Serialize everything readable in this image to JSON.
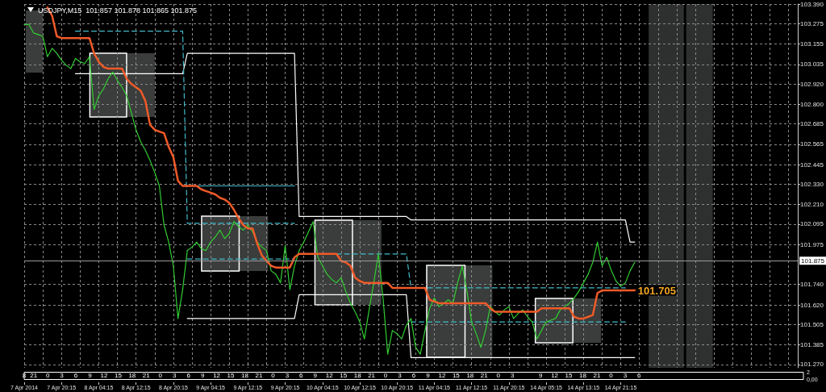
{
  "chart_data": [
    {
      "type": "line",
      "title": "USDJPY,M15  101.857 101.878 101.865 101.875",
      "categories": [
        "7 Apr 2014",
        null,
        null,
        null,
        null,
        null,
        null,
        null,
        "7 Apr 20:15",
        null,
        null,
        null,
        null,
        null,
        null,
        null,
        "8 Apr 04:15",
        null,
        null,
        null,
        null,
        null,
        null,
        null,
        "8 Apr 12:15",
        null,
        null,
        null,
        null,
        null,
        null,
        null,
        "8 Apr 20:15",
        null,
        null,
        null,
        null,
        null,
        null,
        null,
        "9 Apr 04:15",
        null,
        null,
        null,
        null,
        null,
        null,
        null,
        "9 Apr 12:15",
        null,
        null,
        null,
        null,
        null,
        null,
        null,
        "9 Apr 20:15",
        null,
        null,
        null,
        null,
        null,
        null,
        null,
        "10 Apr 04:15",
        null,
        null,
        null,
        null,
        null,
        null,
        null,
        "10 Apr 12:15",
        null,
        null,
        null,
        null,
        null,
        null,
        null,
        "10 Apr 20:15",
        null,
        null,
        null,
        null,
        null,
        null,
        null,
        "11 Apr 04:15",
        null,
        null,
        null,
        null,
        null,
        null,
        null,
        "11 Apr 12:15",
        null,
        null,
        null,
        null,
        null,
        null,
        null,
        "11 Apr 20:15",
        null,
        null,
        null,
        null,
        null,
        null,
        null,
        "14 Apr 05:15",
        null,
        null,
        null,
        null,
        null,
        null,
        null,
        "14 Apr 13:15",
        null,
        null,
        null,
        null,
        null,
        null,
        null,
        "14 Apr 21:15",
        null,
        null,
        null,
        null,
        null,
        null,
        null,
        null,
        null,
        null,
        null,
        null,
        null,
        null,
        null,
        null,
        null,
        null,
        null,
        null,
        null,
        null,
        null,
        null,
        null,
        null,
        null,
        null,
        null,
        null,
        null,
        null,
        null,
        null,
        null,
        null,
        null,
        null
      ],
      "ylim": [
        101.25,
        103.39
      ],
      "yticks": [
        {
          "value": 101.27,
          "label": "101.270"
        },
        {
          "value": 101.385,
          "label": "101.385"
        },
        {
          "value": 101.505,
          "label": "101.505"
        },
        {
          "value": 101.62,
          "label": "101.620"
        },
        {
          "value": 101.74,
          "label": "101.740"
        },
        {
          "value": 101.975,
          "label": "101.975"
        },
        {
          "value": 102.095,
          "label": "102.095"
        },
        {
          "value": 102.21,
          "label": "102.210"
        },
        {
          "value": 102.33,
          "label": "102.330"
        },
        {
          "value": 102.445,
          "label": "102.445"
        },
        {
          "value": 102.565,
          "label": "102.565"
        },
        {
          "value": 102.685,
          "label": "102.685"
        },
        {
          "value": 102.8,
          "label": "102.800"
        },
        {
          "value": 102.92,
          "label": "102.920"
        },
        {
          "value": 103.035,
          "label": "103.035"
        },
        {
          "value": 103.155,
          "label": "103.155"
        },
        {
          "value": 103.275,
          "label": "103.275"
        },
        {
          "value": 103.39,
          "label": "103.390"
        }
      ],
      "grid": true,
      "line_style": "solid",
      "series": [
        {
          "type": "line",
          "color": "#ffffff",
          "values": [
            null,
            null,
            null,
            null,
            null,
            null,
            null,
            null,
            null,
            null,
            null,
            102.98,
            102.98,
            102.98,
            102.98,
            102.98,
            102.98,
            102.98,
            102.98,
            102.98,
            102.98,
            102.98,
            102.98,
            102.98,
            102.98,
            102.98,
            102.98,
            102.98,
            102.98,
            102.98,
            102.98,
            102.98,
            102.98,
            102.98,
            102.98,
            103.1,
            103.1,
            103.1,
            103.1,
            103.1,
            103.1,
            103.1,
            103.1,
            103.1,
            103.1,
            103.1,
            103.1,
            103.1,
            103.1,
            103.1,
            103.1,
            103.1,
            103.1,
            103.1,
            103.1,
            103.1,
            103.1,
            103.1,
            103.1,
            102.14,
            102.14,
            102.14,
            102.14,
            102.14,
            102.14,
            102.14,
            102.14,
            102.14,
            102.14,
            102.14,
            102.14,
            102.14,
            102.14,
            102.14,
            102.14,
            102.14,
            102.14,
            102.14,
            102.14,
            102.14,
            102.14,
            102.14,
            102.14,
            102.12,
            102.12,
            102.12,
            102.12,
            102.12,
            102.12,
            102.12,
            102.12,
            102.12,
            102.12,
            102.12,
            102.12,
            102.12,
            102.12,
            102.12,
            102.12,
            102.12,
            102.12,
            102.12,
            102.12,
            102.12,
            102.12,
            102.12,
            102.12,
            102.12,
            102.12,
            102.12,
            102.12,
            102.12,
            102.12,
            102.12,
            102.12,
            102.12,
            102.12,
            102.12,
            102.12,
            102.12,
            102.12,
            102.12,
            102.12,
            102.12,
            102.12,
            102.12,
            102.12,
            102.12,
            102.12,
            102.12,
            101.99,
            101.99,
            null,
            null,
            null,
            null,
            null,
            null,
            null,
            null,
            null,
            null,
            null,
            null,
            null,
            null,
            null,
            null,
            null,
            null,
            null,
            null,
            null,
            null,
            null,
            null,
            null,
            null,
            null,
            null,
            null,
            null,
            null,
            null,
            null,
            null,
            null
          ]
        },
        {
          "type": "line",
          "color": "#ffffff",
          "values": [
            null,
            null,
            null,
            null,
            null,
            null,
            null,
            null,
            null,
            null,
            null,
            null,
            null,
            null,
            null,
            null,
            null,
            null,
            null,
            null,
            null,
            null,
            null,
            null,
            null,
            null,
            null,
            null,
            null,
            null,
            null,
            null,
            null,
            null,
            null,
            101.54,
            101.54,
            101.54,
            101.54,
            101.54,
            101.54,
            101.54,
            101.54,
            101.54,
            101.54,
            101.54,
            101.54,
            101.54,
            101.54,
            101.54,
            101.54,
            101.54,
            101.54,
            101.54,
            101.54,
            101.54,
            101.54,
            101.54,
            101.54,
            101.68,
            101.68,
            101.68,
            101.68,
            101.68,
            101.68,
            101.68,
            101.68,
            101.68,
            101.68,
            101.68,
            101.68,
            101.68,
            101.68,
            101.68,
            101.68,
            101.68,
            101.68,
            101.68,
            101.68,
            101.68,
            101.68,
            101.68,
            101.68,
            101.31,
            101.31,
            101.31,
            101.31,
            101.31,
            101.31,
            101.31,
            101.31,
            101.31,
            101.31,
            101.31,
            101.31,
            101.31,
            101.31,
            101.31,
            101.31,
            101.31,
            101.31,
            101.31,
            101.31,
            101.31,
            101.31,
            101.31,
            101.31,
            101.31,
            101.31,
            101.31,
            101.31,
            101.31,
            101.31,
            101.31,
            101.31,
            101.31,
            101.31,
            101.31,
            101.31,
            101.31,
            101.31,
            101.31,
            101.31,
            101.31,
            101.31,
            101.31,
            101.31,
            101.31,
            101.31,
            101.31,
            101.31,
            101.31,
            null,
            null,
            null,
            null,
            null,
            null,
            null,
            null,
            null,
            null,
            null,
            null,
            null,
            null,
            null,
            null,
            null,
            null,
            null,
            null,
            null,
            null,
            null,
            null,
            null,
            null,
            null,
            null,
            null,
            null,
            null,
            null,
            null,
            null,
            null
          ]
        },
        {
          "type": "line",
          "color": "#40bccc",
          "line_style": "solid",
          "values": [
            null,
            null,
            null,
            null,
            null,
            null,
            null,
            null,
            null,
            null,
            null,
            null,
            null,
            null,
            null,
            null,
            null,
            null,
            null,
            null,
            null,
            null,
            null,
            null,
            null,
            null,
            null,
            null,
            null,
            null,
            null,
            null,
            null,
            null,
            null,
            102.32,
            102.32,
            102.32,
            102.32,
            102.32,
            102.32,
            102.32,
            102.32,
            102.32,
            102.32,
            102.32,
            102.32,
            102.32,
            102.32,
            102.32,
            102.32,
            102.32,
            102.32,
            102.32,
            102.32,
            102.32,
            102.32,
            102.32,
            102.32,
            null,
            null,
            null,
            null,
            null,
            null,
            null,
            null,
            null,
            null,
            null,
            null,
            null,
            null,
            null,
            null,
            null,
            null,
            null,
            null,
            null,
            null,
            null,
            null,
            null,
            null,
            null,
            null,
            null,
            null,
            null,
            null,
            null,
            null,
            null,
            null,
            null,
            null,
            null,
            null,
            null,
            null,
            null,
            null,
            null,
            null,
            null,
            null,
            null,
            null,
            null,
            null,
            null,
            null,
            null,
            null,
            null,
            null,
            null,
            null,
            null,
            null,
            null,
            null,
            null,
            null,
            null,
            null,
            null,
            null,
            null,
            null,
            null,
            null,
            null,
            null,
            null,
            null,
            null,
            null,
            null,
            null,
            null,
            null,
            null,
            null,
            null,
            null,
            null,
            null,
            null,
            null,
            null,
            null,
            null,
            null,
            null,
            null,
            null,
            null,
            null,
            null,
            null,
            null,
            null,
            null,
            null,
            null
          ]
        },
        {
          "type": "line",
          "color": "#40bccc",
          "line_style": "dashed",
          "values": [
            null,
            null,
            null,
            null,
            null,
            null,
            null,
            null,
            null,
            null,
            null,
            103.23,
            103.23,
            103.23,
            103.23,
            103.23,
            103.23,
            103.23,
            103.23,
            103.23,
            103.23,
            103.23,
            103.23,
            103.23,
            103.23,
            103.23,
            103.23,
            103.23,
            103.23,
            103.23,
            103.23,
            103.23,
            103.23,
            103.23,
            103.23,
            102.1,
            102.1,
            102.1,
            102.1,
            102.1,
            102.1,
            102.1,
            102.1,
            102.1,
            102.1,
            102.1,
            102.1,
            102.1,
            102.1,
            102.1,
            102.1,
            102.1,
            102.1,
            102.1,
            102.1,
            102.1,
            102.1,
            102.1,
            102.1,
            null,
            null,
            null,
            null,
            null,
            null,
            null,
            null,
            101.92,
            101.92,
            101.92,
            101.92,
            101.92,
            101.92,
            101.92,
            101.92,
            101.92,
            101.92,
            101.92,
            101.92,
            101.92,
            101.92,
            101.92,
            101.92,
            101.72,
            101.72,
            101.72,
            101.72,
            101.72,
            101.72,
            101.72,
            101.72,
            101.72,
            101.72,
            101.72,
            101.72,
            101.72,
            101.72,
            101.72,
            101.72,
            101.72,
            101.72,
            101.72,
            101.72,
            101.72,
            101.72,
            101.72,
            101.72,
            101.72,
            101.72,
            101.72,
            101.72,
            101.72,
            101.72,
            101.72,
            101.72,
            101.72,
            101.72,
            101.72,
            101.72,
            101.72,
            101.72,
            101.72,
            101.72,
            101.72,
            101.72,
            101.72,
            101.72,
            101.72,
            101.72,
            101.72,
            null,
            null,
            null,
            null,
            null,
            null,
            null,
            null,
            null,
            null,
            null,
            null,
            null,
            null,
            null,
            null,
            null,
            null,
            null,
            null,
            null,
            null,
            null,
            null,
            null,
            null,
            null,
            null,
            null,
            null,
            null,
            null,
            null,
            null,
            null,
            null,
            null
          ]
        },
        {
          "type": "line",
          "color": "#40bccc",
          "line_style": "dashed",
          "values": [
            null,
            null,
            null,
            null,
            null,
            null,
            null,
            null,
            null,
            null,
            null,
            null,
            null,
            null,
            null,
            null,
            null,
            null,
            null,
            null,
            null,
            null,
            null,
            null,
            null,
            null,
            null,
            null,
            null,
            null,
            null,
            null,
            null,
            null,
            null,
            101.89,
            101.89,
            101.89,
            101.89,
            101.89,
            101.89,
            101.89,
            101.89,
            101.89,
            101.89,
            101.89,
            101.89,
            101.89,
            101.89,
            101.89,
            101.89,
            101.89,
            101.89,
            101.89,
            101.89,
            101.89,
            101.89,
            101.89,
            101.89,
            null,
            null,
            null,
            null,
            null,
            null,
            null,
            null,
            null,
            null,
            null,
            null,
            null,
            null,
            null,
            null,
            null,
            null,
            null,
            null,
            null,
            null,
            null,
            null,
            101.52,
            101.52,
            101.52,
            101.52,
            101.52,
            101.52,
            101.52,
            101.52,
            101.52,
            101.52,
            101.52,
            101.52,
            101.52,
            101.52,
            101.52,
            101.52,
            101.52,
            101.52,
            101.52,
            101.52,
            101.52,
            101.52,
            101.52,
            101.52,
            101.52,
            101.52,
            101.52,
            101.52,
            101.52,
            101.52,
            101.52,
            101.52,
            101.52,
            101.52,
            101.52,
            101.52,
            101.52,
            101.52,
            101.52,
            101.52,
            101.52,
            101.52,
            101.52,
            101.52,
            101.52,
            101.52,
            101.52,
            null,
            null,
            null,
            null,
            null,
            null,
            null,
            null,
            null,
            null,
            null,
            null,
            null,
            null,
            null,
            null,
            null,
            null,
            null,
            null,
            null,
            null,
            null,
            null,
            null,
            null,
            null,
            null,
            null,
            null,
            null,
            null,
            null,
            null,
            null,
            null,
            null
          ]
        },
        {
          "type": "line",
          "color": "#32cd32",
          "values": [
            103.27,
            103.27,
            103.22,
            103.21,
            103.2,
            103.08,
            103.13,
            103.1,
            103.06,
            103.03,
            103.01,
            103.07,
            103.05,
            103.04,
            103.08,
            102.77,
            102.85,
            102.89,
            102.95,
            102.99,
            102.94,
            102.9,
            102.85,
            102.75,
            102.65,
            102.58,
            102.53,
            102.47,
            102.4,
            102.32,
            102.09,
            101.99,
            101.85,
            101.54,
            101.71,
            101.94,
            101.96,
            101.99,
            101.95,
            101.94,
            101.99,
            102.02,
            102.06,
            102.01,
            102.04,
            102.11,
            102.08,
            102.06,
            102.09,
            102.05,
            101.99,
            101.96,
            101.94,
            101.82,
            101.8,
            101.75,
            101.97,
            101.71,
            101.85,
            101.94,
            101.99,
            102.05,
            102.11,
            101.9,
            101.85,
            101.8,
            101.77,
            101.75,
            101.78,
            101.7,
            101.63,
            101.58,
            101.52,
            101.42,
            101.59,
            101.75,
            101.92,
            101.66,
            101.33,
            101.47,
            101.45,
            101.42,
            101.5,
            101.54,
            101.37,
            101.33,
            101.47,
            101.6,
            101.66,
            101.61,
            101.63,
            101.65,
            101.63,
            101.75,
            101.85,
            101.7,
            101.52,
            101.45,
            101.37,
            101.47,
            101.61,
            101.58,
            101.56,
            101.59,
            101.61,
            101.54,
            101.57,
            101.59,
            101.55,
            101.52,
            101.42,
            101.47,
            101.52,
            101.53,
            101.54,
            101.59,
            101.61,
            101.63,
            101.66,
            101.7,
            101.75,
            101.8,
            101.87,
            101.99,
            101.85,
            101.9,
            101.82,
            101.76,
            101.73,
            101.75,
            101.82,
            101.87,
            null,
            null,
            null,
            null,
            null,
            null,
            null,
            null,
            null,
            null,
            null,
            null,
            null,
            null,
            null,
            null,
            null,
            null,
            null,
            null,
            null,
            null,
            null,
            null,
            null,
            null,
            null,
            null,
            null,
            null,
            null,
            null,
            null,
            null,
            null
          ]
        },
        {
          "type": "line",
          "color": "#f05a28",
          "values": [
            null,
            null,
            null,
            null,
            null,
            103.37,
            103.32,
            103.2,
            103.19,
            103.19,
            103.19,
            103.19,
            103.19,
            103.19,
            103.19,
            103.1,
            103.05,
            103.02,
            103.01,
            103.01,
            103.01,
            103.01,
            102.95,
            102.92,
            102.9,
            102.88,
            102.82,
            102.68,
            102.65,
            102.64,
            102.63,
            102.55,
            102.49,
            102.35,
            102.32,
            102.32,
            102.32,
            102.32,
            102.3,
            102.29,
            102.28,
            102.27,
            102.25,
            102.24,
            102.22,
            102.18,
            102.13,
            102.09,
            102.07,
            102.07,
            101.98,
            101.91,
            101.88,
            101.85,
            101.84,
            101.84,
            101.84,
            101.84,
            101.9,
            101.92,
            101.92,
            101.92,
            101.92,
            101.92,
            101.92,
            101.92,
            101.92,
            101.92,
            101.88,
            101.87,
            101.85,
            101.78,
            101.76,
            101.75,
            101.75,
            101.75,
            101.75,
            101.75,
            101.75,
            101.72,
            101.72,
            101.72,
            101.72,
            101.72,
            101.72,
            101.72,
            101.72,
            101.65,
            101.64,
            101.63,
            101.63,
            101.63,
            101.63,
            101.63,
            101.63,
            101.63,
            101.63,
            101.63,
            101.63,
            101.63,
            101.6,
            101.58,
            101.58,
            101.58,
            101.58,
            101.58,
            101.58,
            101.58,
            101.58,
            101.58,
            101.58,
            101.6,
            101.6,
            101.6,
            101.6,
            101.6,
            101.6,
            101.6,
            101.55,
            101.54,
            101.54,
            101.55,
            101.56,
            101.69,
            101.705,
            101.705,
            101.705,
            101.705,
            101.705,
            101.705,
            101.705,
            101.705,
            null,
            null,
            null,
            null,
            null,
            null,
            null,
            null,
            null,
            null,
            null,
            null,
            null,
            null,
            null,
            null,
            null,
            null,
            null,
            null,
            null,
            null,
            null,
            null,
            null,
            null,
            null,
            null,
            null,
            null,
            null,
            null,
            null,
            null,
            null
          ]
        }
      ],
      "ref_lines": [
        {
          "axis": "y",
          "value": 101.875,
          "label": "101.875",
          "color": "#9a9a9a"
        }
      ],
      "annotations": [
        "101.705"
      ]
    },
    {
      "type": "line",
      "values": [
        null,
        null,
        null,
        null,
        null,
        null,
        null,
        null,
        null,
        null,
        null,
        null,
        null,
        null,
        null,
        null,
        null,
        null,
        null,
        null,
        null,
        null,
        null,
        null,
        null,
        null,
        null,
        null,
        null,
        null,
        null,
        null,
        null,
        null,
        null,
        null,
        null,
        null,
        null,
        null,
        null,
        null,
        null,
        null,
        null,
        null,
        null,
        null,
        null,
        null,
        null,
        null,
        null,
        null,
        null,
        null,
        null,
        null,
        null,
        null,
        null,
        null,
        null,
        null,
        null,
        null,
        null,
        null,
        null,
        null,
        null,
        null,
        null,
        null,
        null,
        null,
        null,
        null,
        null,
        null,
        null,
        null,
        null,
        null,
        null,
        null,
        null,
        null,
        null,
        null,
        null,
        null,
        null,
        null,
        null,
        null,
        null,
        null,
        null,
        null,
        null,
        null,
        null,
        null,
        null,
        null,
        null,
        null,
        null,
        null,
        null,
        null,
        null,
        null,
        null,
        null,
        null,
        null,
        null,
        null,
        null,
        null,
        null,
        null,
        null,
        null,
        null,
        null,
        null,
        null,
        null,
        null,
        null,
        null,
        null,
        null,
        null,
        null,
        null,
        null,
        null,
        null,
        null,
        null,
        null,
        null,
        null,
        null,
        null,
        null,
        null,
        null,
        null,
        null,
        null,
        null,
        null,
        null,
        null,
        null,
        null,
        null,
        null,
        null,
        null,
        null,
        null
      ],
      "categories": [
        "8",
        null,
        "21",
        null,
        null,
        "0",
        null,
        null,
        "3",
        null,
        null,
        "6",
        null,
        null,
        "9",
        null,
        null,
        "12",
        null,
        null,
        "15",
        null,
        null,
        "18",
        null,
        null,
        "21",
        null,
        null,
        "0",
        null,
        null,
        "3",
        null,
        null,
        "6",
        null,
        null,
        "9",
        null,
        null,
        "12",
        null,
        null,
        "15",
        null,
        null,
        "18",
        null,
        null,
        "21",
        null,
        null,
        "0",
        null,
        null,
        "3",
        null,
        null,
        "6",
        null,
        null,
        "9",
        null,
        null,
        "12",
        null,
        null,
        "15",
        null,
        null,
        "18",
        null,
        null,
        "21",
        null,
        null,
        "0",
        null,
        null,
        "3",
        null,
        null,
        "6",
        null,
        null,
        "9",
        null,
        null,
        "12",
        null,
        null,
        "15",
        null,
        null,
        "18",
        null,
        null,
        "21",
        null,
        null,
        "0",
        null,
        null,
        "3",
        null,
        null,
        null,
        null,
        null,
        "9",
        null,
        null,
        "12",
        null,
        null,
        "15",
        null,
        null,
        "18",
        null,
        null,
        "21",
        null,
        null,
        "0",
        null,
        null,
        "3",
        null,
        null,
        "6",
        null,
        null,
        null,
        null,
        null,
        null,
        null,
        null,
        null,
        null,
        null,
        null,
        null,
        null,
        null,
        null,
        null,
        null,
        null,
        null,
        null,
        null,
        null,
        null,
        null,
        null,
        null,
        null,
        null,
        null,
        null,
        null,
        null,
        null,
        null
      ],
      "ylim": [
        0,
        2
      ],
      "yticks": [
        {
          "value": 0,
          "label": "0,00"
        },
        2
      ]
    }
  ]
}
